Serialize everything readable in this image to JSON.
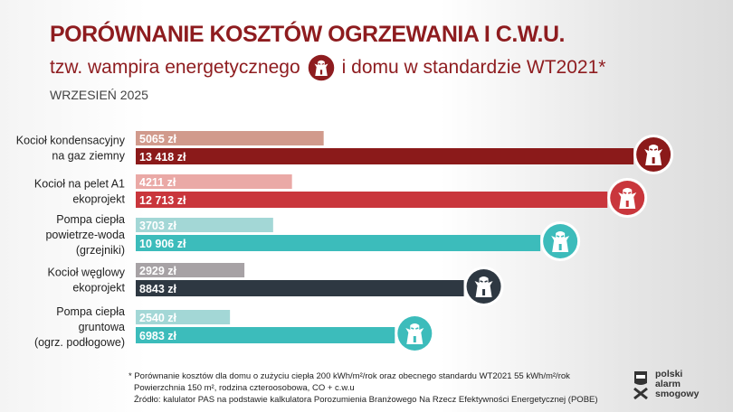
{
  "header": {
    "title": "PORÓWNANIE KOSZTÓW OGRZEWANIA I C.W.U.",
    "subtitle_before": "tzw. wampira energetycznego",
    "subtitle_after": "i domu w standardzie WT2021*",
    "date": "WRZESIEŃ 2025"
  },
  "chart_data": {
    "type": "bar",
    "title": "PORÓWNANIE KOSZTÓW OGRZEWANIA I C.W.U.",
    "orientation": "horizontal",
    "unit": "zł",
    "categories": [
      {
        "label": [
          "Kocioł kondensacyjny",
          "na gaz ziemny"
        ],
        "wt2021": 5065,
        "wt2021_label": "5065 zł",
        "vampire": 13418,
        "vampire_label": "13 418 zł",
        "light": "#d19a8c",
        "dark": "#8b1a1a"
      },
      {
        "label": [
          "Kocioł na pelet A1",
          "ekoprojekt"
        ],
        "wt2021": 4211,
        "wt2021_label": "4211  zł",
        "vampire": 12713,
        "vampire_label": "12 713 zł",
        "light": "#eaa9a6",
        "dark": "#c9363c"
      },
      {
        "label": [
          "Pompa ciepła",
          "powietrze-woda",
          "(grzejniki)"
        ],
        "wt2021": 3703,
        "wt2021_label": "3703 zł",
        "vampire": 10906,
        "vampire_label": "10 906 zł",
        "light": "#a3d7d6",
        "dark": "#3cbcbb"
      },
      {
        "label": [
          "Kocioł węglowy",
          "ekoprojekt"
        ],
        "wt2021": 2929,
        "wt2021_label": "2929 zł",
        "vampire": 8843,
        "vampire_label": "8843 zł",
        "light": "#a7a2a5",
        "dark": "#2e3842"
      },
      {
        "label": [
          "Pompa ciepła",
          "gruntowa",
          "(ogrz. podłogowe)"
        ],
        "wt2021": 2540,
        "wt2021_label": "2540 zł",
        "vampire": 6983,
        "vampire_label": "6983 zł",
        "light": "#a3d7d6",
        "dark": "#3cbcbb"
      }
    ],
    "series": [
      {
        "name": "WT2021"
      },
      {
        "name": "wampir energetyczny"
      }
    ]
  },
  "footnote": {
    "line1": "* Porównanie kosztów dla domu o zużyciu ciepła 200 kWh/m²/rok oraz obecnego standardu WT2021 55 kWh/m²/rok",
    "line2": "Powierzchnia 150 m², rodzina czteroosobowa, CO + c.w.u",
    "line3": "Źródło: kalulator PAS na podstawie kalkulatora Porozumienia Branżowego Na Rzecz Efektywności Energetycznej (POBE)"
  },
  "logo": {
    "line1": "polski",
    "line2": "alarm",
    "line3": "smogowy"
  },
  "colors": {
    "brand": "#8e1c1f"
  }
}
